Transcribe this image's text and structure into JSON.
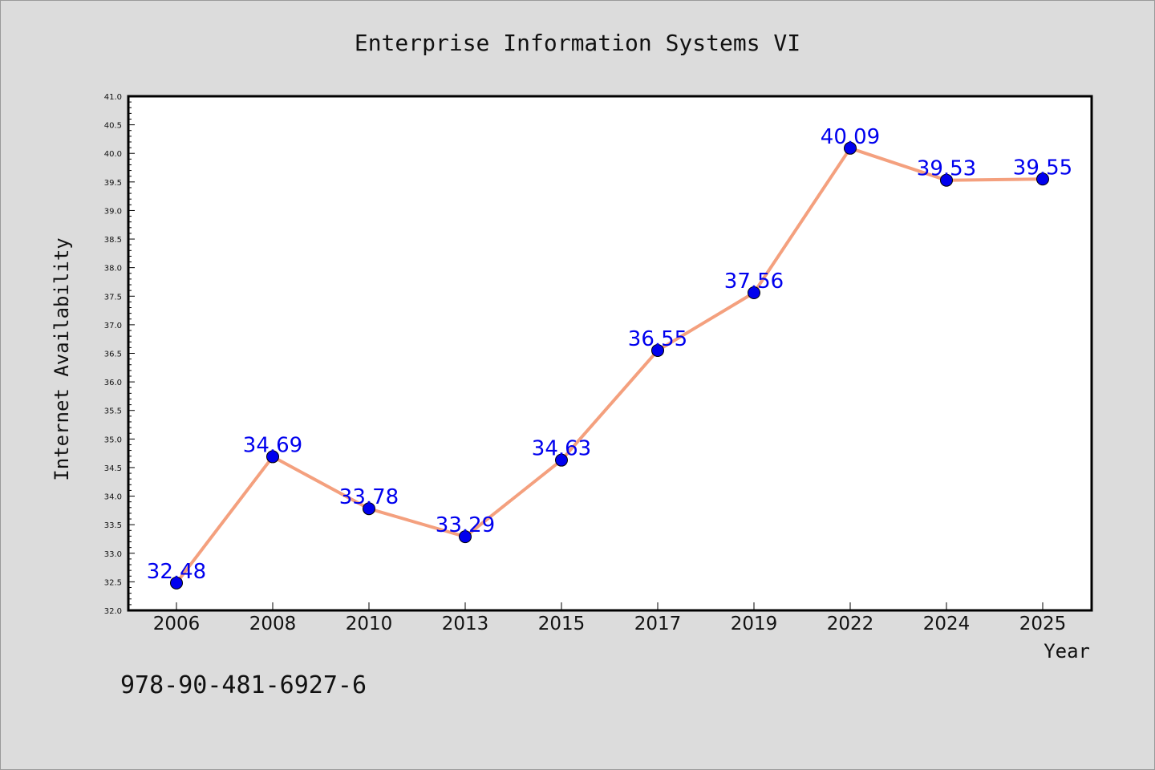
{
  "chart_data": {
    "type": "line",
    "title": "Enterprise Information Systems VI",
    "xlabel": "Year",
    "ylabel": "Internet Availability",
    "categories": [
      "2006",
      "2008",
      "2010",
      "2013",
      "2015",
      "2017",
      "2019",
      "2022",
      "2024",
      "2025"
    ],
    "values": [
      32.48,
      34.69,
      33.78,
      33.29,
      34.63,
      36.55,
      37.56,
      40.09,
      39.53,
      39.55
    ],
    "data_labels": [
      "32.48",
      "34.69",
      "33.78",
      "33.29",
      "34.63",
      "36.55",
      "37.56",
      "40.09",
      "39.53",
      "39.55"
    ],
    "ylim": [
      32.0,
      41.0
    ],
    "yticks": [
      "32.0",
      "32.5",
      "33.0",
      "33.5",
      "34.0",
      "34.5",
      "35.0",
      "35.5",
      "36.0",
      "36.5",
      "37.0",
      "37.5",
      "38.0",
      "38.5",
      "39.0",
      "39.5",
      "40.0",
      "40.5",
      "41.0"
    ],
    "grid": false,
    "line_color": "#f4a07e",
    "marker_color": "#0000ee",
    "label_color": "#0000ee"
  },
  "footer": {
    "isbn": "978-90-481-6927-6"
  }
}
